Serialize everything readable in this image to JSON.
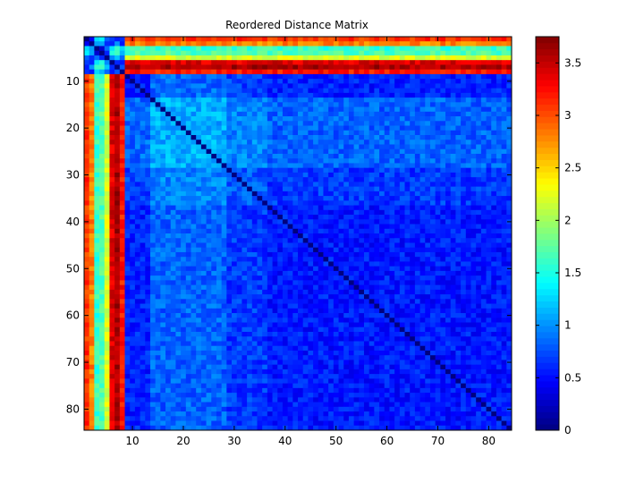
{
  "chart_data": {
    "type": "heatmap",
    "title": "Reordered Distance Matrix",
    "size": 84,
    "colormap": "jet",
    "xlim": [
      0.5,
      84.5
    ],
    "ylim": [
      0.5,
      84.5
    ],
    "y_direction": "top-to-bottom",
    "x_ticks": [
      10,
      20,
      30,
      40,
      50,
      60,
      70,
      80
    ],
    "y_ticks": [
      10,
      20,
      30,
      40,
      50,
      60,
      70,
      80
    ],
    "clim": [
      0,
      3.75
    ],
    "colorbar_ticks": [
      0,
      0.5,
      1,
      1.5,
      2,
      2.5,
      3,
      3.5
    ],
    "colorbar_tick_labels": [
      "0",
      "0.5",
      "1",
      "1.5",
      "2",
      "2.5",
      "3",
      "3.5"
    ],
    "outlier_rows": [
      {
        "index": 1,
        "typical_distance": 3.1
      },
      {
        "index": 2,
        "typical_distance": 2.8
      },
      {
        "index": 3,
        "typical_distance": 1.6
      },
      {
        "index": 4,
        "typical_distance": 1.7
      },
      {
        "index": 5,
        "typical_distance": 2.2
      },
      {
        "index": 6,
        "typical_distance": 3.4
      },
      {
        "index": 7,
        "typical_distance": 3.6
      },
      {
        "index": 8,
        "typical_distance": 3.2
      }
    ],
    "column_profile_noted": [
      {
        "range": [
          9,
          13
        ],
        "typical_distance": 0.6
      },
      {
        "range": [
          14,
          28
        ],
        "typical_distance": 1.1
      },
      {
        "range": [
          29,
          36
        ],
        "typical_distance": 0.8
      },
      {
        "range": [
          37,
          84
        ],
        "typical_distance": 0.55
      }
    ],
    "diagonal_value": 0,
    "grid": false
  }
}
